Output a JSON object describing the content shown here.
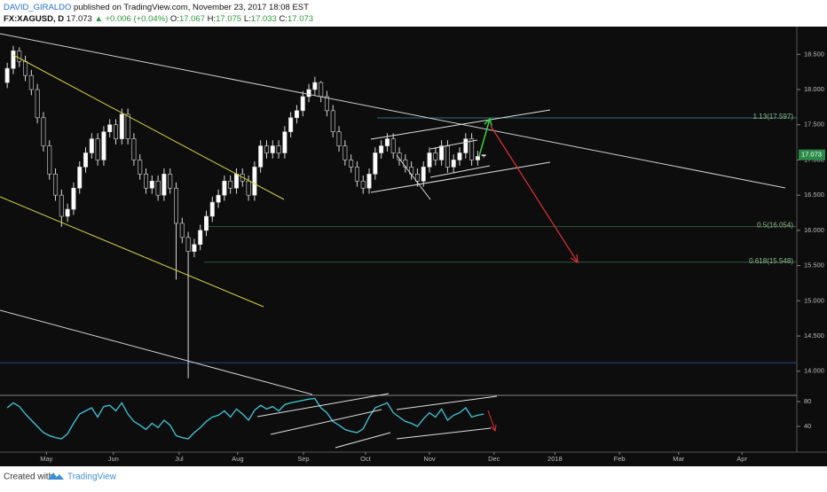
{
  "header": {
    "author": "DAVID_GIRALDO",
    "published": "published on TradingView.com, November 23, 2017 18:08 EST",
    "symbol": "FX:XAGUSD, D",
    "change": "▲ +0.006 (+0.04%)",
    "open_prefix": "O:",
    "high_prefix": "H:",
    "low_prefix": "L:",
    "close_prefix": "C:"
  },
  "footer": {
    "created": "Created with",
    "brand": "TradingView"
  },
  "chart_data": {
    "type": "candlestick",
    "up_color": "#ffffff",
    "down_color": "#111111",
    "wick_color": "#d8d8d8",
    "open": [
      18.1,
      18.3,
      18.55,
      18.4,
      18.2,
      18.0,
      17.6,
      17.2,
      16.8,
      16.5,
      16.2,
      16.3,
      16.6,
      16.9,
      17.1,
      17.3,
      17.0,
      17.4,
      17.5,
      17.3,
      17.65,
      17.3,
      17.0,
      16.8,
      16.6,
      16.7,
      16.5,
      16.8,
      16.6,
      16.1,
      15.9,
      15.7,
      15.8,
      16.0,
      16.2,
      16.4,
      16.5,
      16.7,
      16.6,
      16.8,
      16.7,
      16.5,
      16.9,
      17.2,
      17.1,
      17.2,
      17.1,
      17.4,
      17.6,
      17.7,
      17.9,
      18.0,
      18.1,
      17.9,
      17.7,
      17.4,
      17.2,
      17.0,
      16.9,
      16.7,
      16.6,
      16.8,
      17.1,
      17.2,
      17.3,
      17.1,
      17.0,
      16.9,
      16.8,
      16.7,
      16.9,
      17.1,
      17.0,
      17.2,
      16.9,
      17.0,
      17.1,
      17.3,
      17.0,
      17.067
    ],
    "high": [
      18.38,
      18.62,
      18.6,
      18.48,
      18.28,
      18.08,
      17.68,
      17.28,
      16.88,
      16.58,
      16.38,
      16.68,
      16.98,
      17.18,
      17.38,
      17.38,
      17.48,
      17.58,
      17.58,
      17.73,
      17.73,
      17.38,
      17.08,
      16.88,
      16.78,
      16.78,
      16.88,
      16.88,
      16.68,
      16.18,
      15.98,
      15.88,
      16.08,
      16.28,
      16.48,
      16.58,
      16.78,
      16.78,
      16.88,
      16.88,
      16.78,
      16.98,
      17.28,
      17.28,
      17.28,
      17.28,
      17.48,
      17.68,
      17.78,
      17.98,
      18.08,
      18.18,
      18.12,
      17.98,
      17.78,
      17.48,
      17.28,
      17.08,
      16.98,
      16.78,
      16.88,
      17.18,
      17.28,
      17.38,
      17.38,
      17.18,
      17.08,
      16.98,
      16.88,
      16.98,
      17.18,
      17.18,
      17.28,
      17.28,
      17.08,
      17.18,
      17.38,
      17.38,
      17.13,
      17.075
    ],
    "low": [
      18.02,
      18.22,
      18.32,
      18.12,
      17.92,
      17.52,
      17.12,
      16.72,
      16.42,
      16.05,
      16.12,
      16.22,
      16.52,
      16.82,
      17.02,
      16.92,
      16.92,
      17.32,
      17.22,
      17.22,
      17.22,
      16.92,
      16.72,
      16.52,
      16.52,
      16.42,
      16.42,
      16.52,
      15.3,
      15.82,
      13.9,
      15.62,
      15.72,
      15.92,
      16.12,
      16.32,
      16.42,
      16.52,
      16.52,
      16.62,
      16.42,
      16.42,
      16.82,
      17.02,
      17.02,
      17.02,
      17.02,
      17.32,
      17.52,
      17.62,
      17.82,
      17.92,
      17.82,
      17.62,
      17.32,
      17.12,
      16.92,
      16.82,
      16.62,
      16.52,
      16.52,
      16.72,
      17.02,
      17.12,
      17.02,
      16.92,
      16.82,
      16.72,
      16.62,
      16.62,
      16.82,
      16.92,
      16.92,
      16.82,
      16.82,
      16.92,
      17.02,
      16.92,
      16.92,
      17.033
    ],
    "close": [
      18.3,
      18.55,
      18.4,
      18.2,
      18.0,
      17.6,
      17.2,
      16.8,
      16.5,
      16.2,
      16.3,
      16.6,
      16.9,
      17.1,
      17.3,
      17.0,
      17.4,
      17.5,
      17.3,
      17.65,
      17.3,
      17.0,
      16.8,
      16.6,
      16.7,
      16.5,
      16.8,
      16.6,
      16.1,
      15.9,
      15.7,
      15.8,
      16.0,
      16.2,
      16.4,
      16.5,
      16.7,
      16.6,
      16.8,
      16.7,
      16.5,
      16.9,
      17.2,
      17.1,
      17.2,
      17.1,
      17.4,
      17.6,
      17.7,
      17.9,
      18.0,
      18.1,
      17.9,
      17.7,
      17.4,
      17.2,
      17.0,
      16.9,
      16.7,
      16.6,
      16.8,
      17.1,
      17.2,
      17.3,
      17.1,
      17.0,
      16.9,
      16.8,
      16.7,
      16.9,
      17.1,
      17.0,
      17.2,
      16.9,
      17.0,
      17.1,
      17.3,
      17.0,
      17.05,
      17.073
    ],
    "ylim": [
      13.657,
      18.894
    ],
    "yticks": [
      {
        "value": 14,
        "label": "14.000"
      },
      {
        "value": 14.5,
        "label": "14.500"
      },
      {
        "value": 15,
        "label": "15.000"
      },
      {
        "value": 15.5,
        "label": "15.500"
      },
      {
        "value": 16,
        "label": "16.000"
      },
      {
        "value": 16.5,
        "label": "16.500"
      },
      {
        "value": 17,
        "label": "17.000"
      },
      {
        "value": 17.5,
        "label": "17.500"
      },
      {
        "value": 18,
        "label": "18.000"
      },
      {
        "value": 18.5,
        "label": "18.500"
      }
    ],
    "xlim": [
      -1.2,
      130.9
    ],
    "xticks": [
      {
        "value": 6.5,
        "label": "May"
      },
      {
        "value": 17.6,
        "label": "Jun"
      },
      {
        "value": 28.5,
        "label": "Jul"
      },
      {
        "value": 38.2,
        "label": "Aug"
      },
      {
        "value": 49.1,
        "label": "Sep"
      },
      {
        "value": 59.4,
        "label": "Oct"
      },
      {
        "value": 70,
        "label": "Nov"
      },
      {
        "value": 80.7,
        "label": "Dec"
      },
      {
        "value": 90.8,
        "label": "2018"
      },
      {
        "value": 101.5,
        "label": "Feb"
      },
      {
        "value": 111.3,
        "label": "Mar"
      },
      {
        "value": 121.8,
        "label": "Apr"
      }
    ],
    "levels": [
      {
        "label": "1.13(17.597)",
        "value": 17.597,
        "color": "#2e6b7a"
      },
      {
        "label": "0.5(16.054)",
        "value": 16.054,
        "color": "#2e5a3a"
      },
      {
        "label": "0.618(15.548)",
        "value": 15.548,
        "color": "#2e5a3a"
      }
    ],
    "hlines": [
      {
        "value": 14.12,
        "color": "#27448a"
      }
    ],
    "last_color": "#2a8a4a",
    "indicator": {
      "type": "line",
      "color": "#3fc8dc",
      "values": [
        70,
        78,
        72,
        60,
        50,
        40,
        30,
        25,
        22,
        20,
        28,
        45,
        60,
        65,
        70,
        55,
        72,
        74,
        65,
        78,
        60,
        48,
        42,
        35,
        45,
        38,
        50,
        42,
        25,
        22,
        20,
        30,
        38,
        48,
        55,
        58,
        65,
        55,
        68,
        60,
        50,
        66,
        74,
        68,
        72,
        65,
        75,
        78,
        80,
        82,
        84,
        85,
        70,
        62,
        48,
        42,
        35,
        32,
        30,
        36,
        55,
        70,
        74,
        78,
        62,
        55,
        48,
        45,
        40,
        52,
        62,
        55,
        68,
        50,
        58,
        62,
        70,
        55,
        58,
        60
      ],
      "ylim": [
        -1.4,
        88.6
      ],
      "yticks": [
        40,
        80
      ]
    }
  }
}
